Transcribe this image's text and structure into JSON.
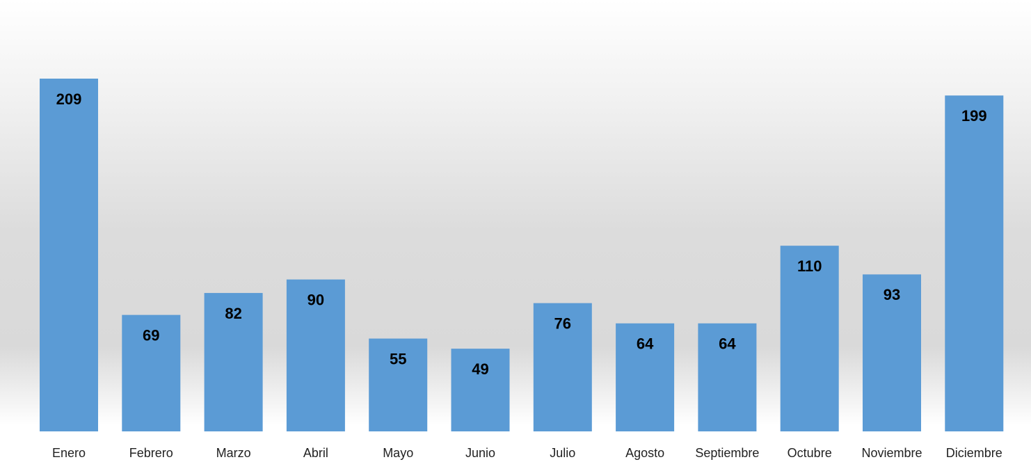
{
  "chart_data": {
    "type": "bar",
    "categories": [
      "Enero",
      "Febrero",
      "Marzo",
      "Abril",
      "Mayo",
      "Junio",
      "Julio",
      "Agosto",
      "Septiembre",
      "Octubre",
      "Noviembre",
      "Diciembre"
    ],
    "values": [
      209,
      69,
      82,
      90,
      55,
      49,
      76,
      64,
      64,
      110,
      93,
      199
    ],
    "color": "#5b9bd5"
  }
}
